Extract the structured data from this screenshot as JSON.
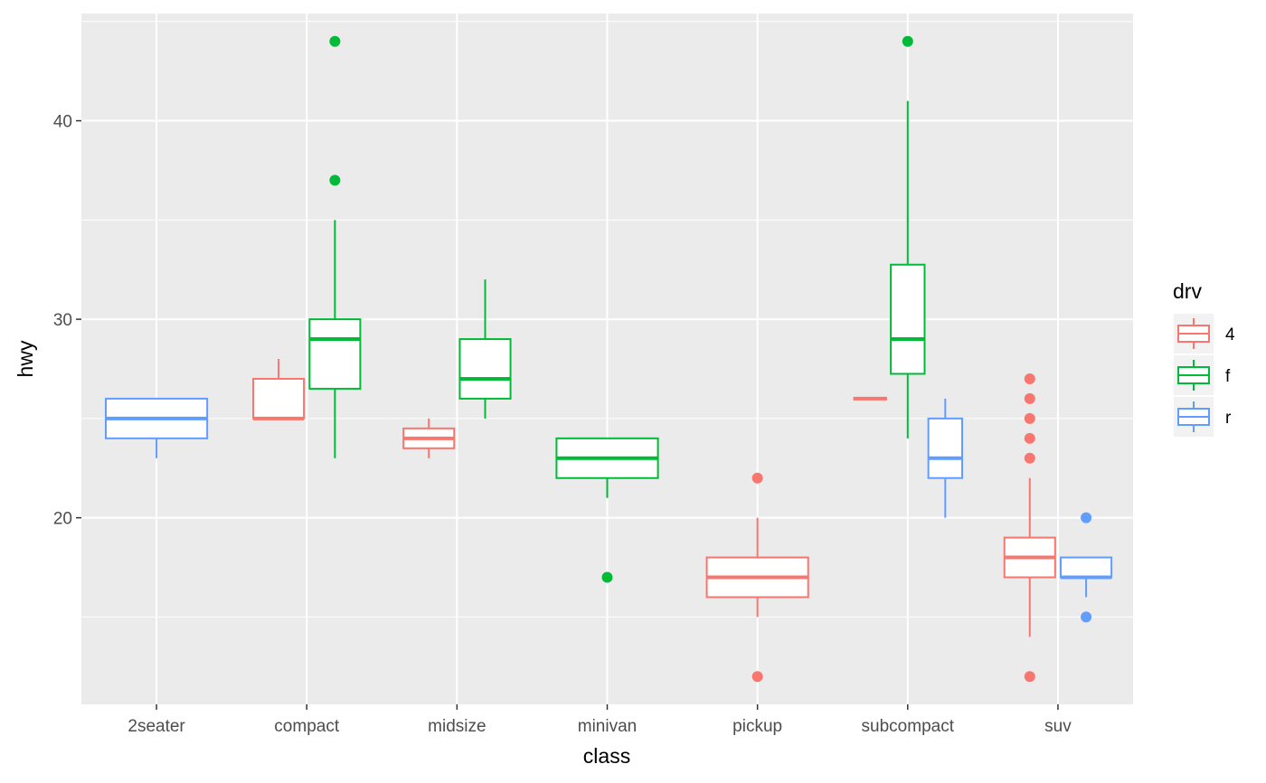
{
  "chart_data": {
    "type": "boxplot",
    "xlabel": "class",
    "ylabel": "hwy",
    "ylim": [
      10.6,
      45.4
    ],
    "y_ticks": [
      20,
      30,
      40
    ],
    "grid": true,
    "legend_position": "right",
    "categories": [
      "2seater",
      "compact",
      "midsize",
      "minivan",
      "pickup",
      "subcompact",
      "suv"
    ],
    "legend": {
      "title": "drv",
      "entries": [
        {
          "label": "4",
          "color": "#F8766D"
        },
        {
          "label": "f",
          "color": "#00BA38"
        },
        {
          "label": "r",
          "color": "#619CFF"
        }
      ]
    },
    "boxes": [
      {
        "category": "2seater",
        "group": "r",
        "q1": 24,
        "median": 25,
        "q3": 26,
        "whisker_low": 23,
        "whisker_high": 26,
        "outliers": []
      },
      {
        "category": "compact",
        "group": "4",
        "q1": 25,
        "median": 25,
        "q3": 27,
        "whisker_low": 25,
        "whisker_high": 28,
        "outliers": []
      },
      {
        "category": "compact",
        "group": "f",
        "q1": 26.5,
        "median": 29,
        "q3": 30,
        "whisker_low": 23,
        "whisker_high": 35,
        "outliers": [
          37,
          44
        ]
      },
      {
        "category": "midsize",
        "group": "4",
        "q1": 23.5,
        "median": 24,
        "q3": 24.5,
        "whisker_low": 23,
        "whisker_high": 25,
        "outliers": []
      },
      {
        "category": "midsize",
        "group": "f",
        "q1": 26,
        "median": 27,
        "q3": 29,
        "whisker_low": 25,
        "whisker_high": 32,
        "outliers": []
      },
      {
        "category": "minivan",
        "group": "f",
        "q1": 22,
        "median": 23,
        "q3": 24,
        "whisker_low": 21,
        "whisker_high": 24,
        "outliers": [
          17
        ]
      },
      {
        "category": "pickup",
        "group": "4",
        "q1": 16,
        "median": 17,
        "q3": 18,
        "whisker_low": 15,
        "whisker_high": 20,
        "outliers": [
          12,
          22
        ]
      },
      {
        "category": "subcompact",
        "group": "4",
        "q1": 26,
        "median": 26,
        "q3": 26,
        "whisker_low": 26,
        "whisker_high": 26,
        "outliers": []
      },
      {
        "category": "subcompact",
        "group": "f",
        "q1": 27.25,
        "median": 29,
        "q3": 32.75,
        "whisker_low": 24,
        "whisker_high": 41,
        "outliers": [
          44
        ]
      },
      {
        "category": "subcompact",
        "group": "r",
        "q1": 22,
        "median": 23,
        "q3": 25,
        "whisker_low": 20,
        "whisker_high": 26,
        "outliers": []
      },
      {
        "category": "suv",
        "group": "4",
        "q1": 17,
        "median": 18,
        "q3": 19,
        "whisker_low": 14,
        "whisker_high": 22,
        "outliers": [
          12,
          23,
          24,
          25,
          26,
          27
        ]
      },
      {
        "category": "suv",
        "group": "r",
        "q1": 17,
        "median": 17,
        "q3": 18,
        "whisker_low": 16,
        "whisker_high": 18,
        "outliers": [
          15,
          20
        ]
      }
    ]
  }
}
